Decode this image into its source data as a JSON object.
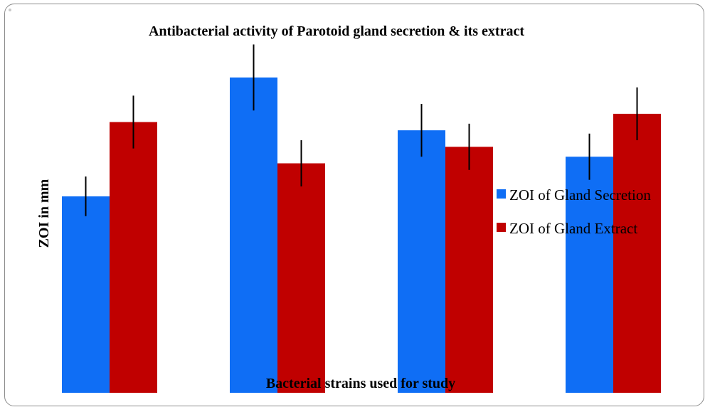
{
  "chart_data": {
    "type": "bar",
    "title": "Antibacterial  activity of Parotoid gland secretion & its extract",
    "xlabel": "Bacterial strains used for study",
    "ylabel": "ZOI in mm",
    "categories": [
      "",
      "",
      "",
      ""
    ],
    "ylim": [
      0,
      20
    ],
    "grid": false,
    "legend_position": "right",
    "series": [
      {
        "name": "ZOI of Gland Secretion",
        "color": "#0f6ef5",
        "values": [
          11.9,
          19.1,
          15.9,
          14.3
        ],
        "errors": [
          1.2,
          2.0,
          1.6,
          1.4
        ]
      },
      {
        "name": "ZOI of Gland Extract",
        "color": "#c00000",
        "values": [
          16.4,
          13.9,
          14.9,
          16.9
        ],
        "errors": [
          1.6,
          1.4,
          1.4,
          1.6
        ]
      }
    ]
  }
}
